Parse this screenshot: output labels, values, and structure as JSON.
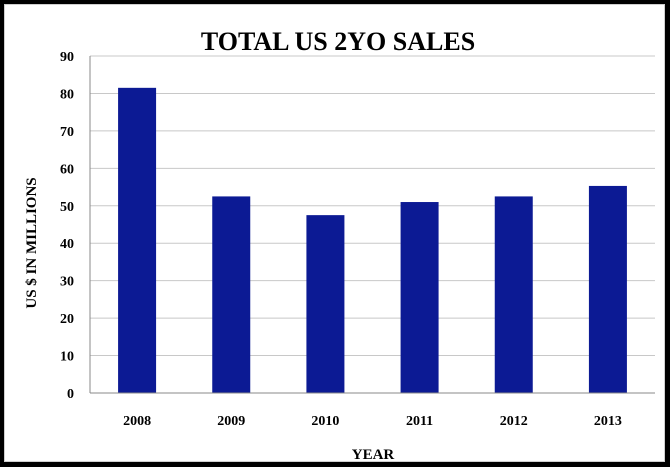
{
  "chart_data": {
    "type": "bar",
    "title": "TOTAL US 2YO SALES",
    "xlabel": "YEAR",
    "ylabel": "US $ IN MILLIONS",
    "categories": [
      "2008",
      "2009",
      "2010",
      "2011",
      "2012",
      "2013"
    ],
    "values": [
      81.5,
      52.5,
      47.5,
      51,
      52.5,
      55.3
    ],
    "ylim": [
      0,
      90
    ],
    "yticks": [
      0,
      10,
      20,
      30,
      40,
      50,
      60,
      70,
      80,
      90
    ],
    "grid": true,
    "legend": "none",
    "colors": {
      "bar": "#0c1a94",
      "grid": "#c8c8c8",
      "axis": "#888888"
    }
  }
}
